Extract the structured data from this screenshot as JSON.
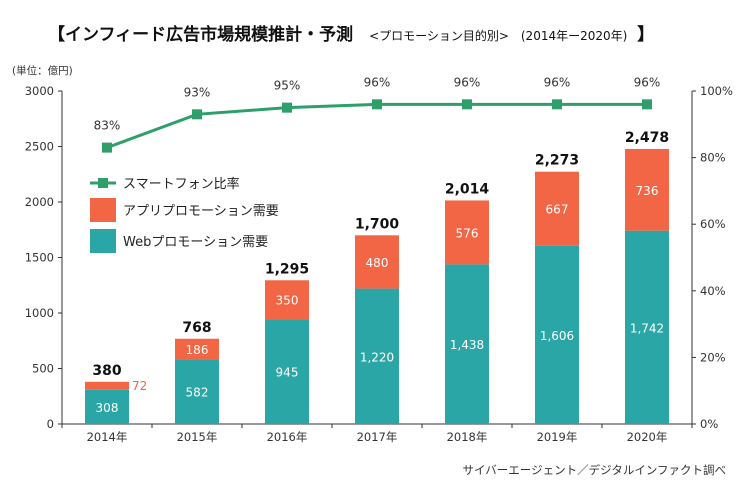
{
  "chart_data": {
    "type": "bar",
    "stacked": true,
    "title": "【インフィード広告市場規模推計・予測",
    "subtitle": "<プロモーション目的別>",
    "period": "(2014年ー2020年)",
    "title_close": "】",
    "unit_label": "(単位：億円)",
    "categories": [
      "2014年",
      "2015年",
      "2016年",
      "2017年",
      "2018年",
      "2019年",
      "2020年"
    ],
    "series": [
      {
        "name": "Webプロモーション需要",
        "values": [
          308,
          582,
          945,
          1220,
          1438,
          1606,
          1742
        ],
        "labels": [
          "308",
          "582",
          "945",
          "1,220",
          "1,438",
          "1,606",
          "1,742"
        ]
      },
      {
        "name": "アプリプロモーション需要",
        "values": [
          72,
          186,
          350,
          480,
          576,
          667,
          736
        ],
        "labels": [
          "72",
          "186",
          "350",
          "480",
          "576",
          "667",
          "736"
        ]
      }
    ],
    "totals": [
      380,
      768,
      1295,
      1700,
      2014,
      2273,
      2478
    ],
    "total_labels": [
      "380",
      "768",
      "1,295",
      "1,700",
      "2,014",
      "2,273",
      "2,478"
    ],
    "line_series": {
      "name": "スマートフォン比率",
      "values": [
        83,
        93,
        95,
        96,
        96,
        96,
        96
      ],
      "labels": [
        "83%",
        "93%",
        "95%",
        "96%",
        "96%",
        "96%",
        "96%"
      ]
    },
    "y_left": {
      "min": 0,
      "max": 3000,
      "ticks": [
        0,
        500,
        1000,
        1500,
        2000,
        2500,
        3000
      ]
    },
    "y_right": {
      "min": 0,
      "max": 100,
      "ticks": [
        "0%",
        "20%",
        "40%",
        "60%",
        "80%",
        "100%"
      ]
    },
    "legend_position": "top-left",
    "source": "サイバーエージェント／デジタルインファクト調べ"
  },
  "colors": {
    "web": "#2aa6a6",
    "app": "#f26545",
    "line": "#2e9e6b",
    "axis": "#333333"
  }
}
